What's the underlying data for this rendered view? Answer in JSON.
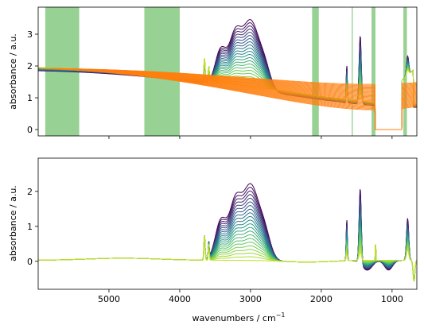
{
  "chart_data": [
    {
      "type": "line",
      "ylabel": "absorbance / a.u.",
      "xlabel": "",
      "xlim": [
        6000,
        650
      ],
      "ylim": [
        -0.2,
        3.85
      ],
      "yticks": [
        0,
        1,
        2,
        3
      ],
      "xticks": [
        5000,
        4000,
        3000,
        2000,
        1000
      ],
      "show_xtick_labels": false,
      "highlight_color": "#98d194",
      "highlight_regions": [
        [
          5900,
          5420
        ],
        [
          4500,
          4000
        ],
        [
          2130,
          2035
        ],
        [
          1570,
          1555
        ],
        [
          1290,
          1235
        ],
        [
          840,
          790
        ]
      ],
      "colormap": [
        "#440154",
        "#3b528b",
        "#21918c",
        "#5ec962",
        "#c2df23"
      ],
      "baseline_color": "#ff7f0e",
      "series_count": 22,
      "fit_series_count": 30
    },
    {
      "type": "line",
      "ylabel": "absorbance / a.u.",
      "xlabel": "wavenumbers / cm",
      "xlabel_sup": "−1",
      "xlim": [
        6000,
        650
      ],
      "ylim": [
        -0.8,
        2.95
      ],
      "yticks": [
        0,
        1,
        2
      ],
      "xticks": [
        5000,
        4000,
        3000,
        2000,
        1000
      ],
      "show_xtick_labels": true,
      "colormap": [
        "#440154",
        "#3b528b",
        "#21918c",
        "#5ec962",
        "#c2df23"
      ],
      "series_count": 22
    }
  ]
}
